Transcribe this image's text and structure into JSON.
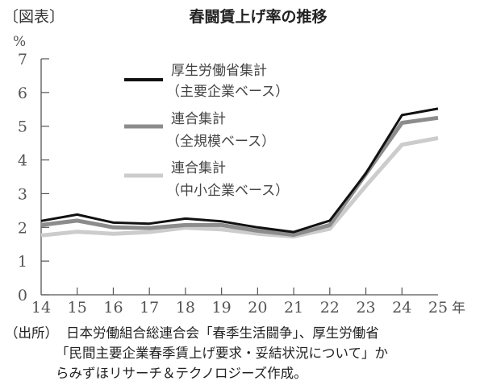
{
  "figure_label": "〔図表〕",
  "title": "春闘賃上げ率の推移",
  "y_unit": "%",
  "x_unit": "年",
  "source": {
    "label": "（出所）",
    "line1": "日本労働組合総連合会「春季生活闘争」、厚生労働省",
    "line2": "「民間主要企業春季賃上げ要求・妥結状況について」か",
    "line3": "らみずほリサーチ＆テクノロジーズ作成。"
  },
  "chart_data": {
    "type": "line",
    "title": "春闘賃上げ率の推移",
    "xlabel": "年",
    "ylabel": "%",
    "categories": [
      "14",
      "15",
      "16",
      "17",
      "18",
      "19",
      "20",
      "21",
      "22",
      "23",
      "24",
      "25"
    ],
    "ylim": [
      0,
      7
    ],
    "yticks": [
      0,
      1,
      2,
      3,
      4,
      5,
      6,
      7
    ],
    "grid": false,
    "legend_position": "upper-left-inside",
    "series": [
      {
        "name": "厚生労働省集計（主要企業ベース）",
        "line1": "厚生労働省集計",
        "line2": "（主要企業ベース）",
        "color": "#111111",
        "width": 3,
        "values": [
          2.19,
          2.38,
          2.14,
          2.11,
          2.26,
          2.18,
          2.0,
          1.86,
          2.2,
          3.6,
          5.33,
          5.52
        ]
      },
      {
        "name": "連合集計（全規模ベース）",
        "line1": "連合集計",
        "line2": "（全規模ベース）",
        "color": "#8c8c8c",
        "width": 5,
        "values": [
          2.07,
          2.2,
          2.0,
          1.98,
          2.07,
          2.07,
          1.9,
          1.78,
          2.07,
          3.58,
          5.1,
          5.25
        ]
      },
      {
        "name": "連合集計（中小企業ベース）",
        "line1": "連合集計",
        "line2": "（中小企業ベース）",
        "color": "#cccccc",
        "width": 5,
        "values": [
          1.76,
          1.87,
          1.81,
          1.86,
          1.99,
          1.94,
          1.81,
          1.73,
          1.96,
          3.23,
          4.45,
          4.65
        ]
      }
    ]
  }
}
